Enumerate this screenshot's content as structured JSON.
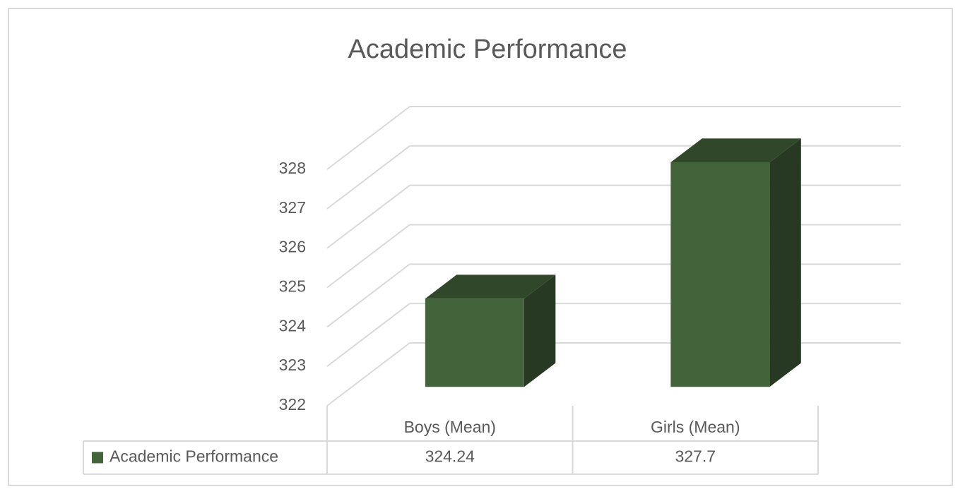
{
  "chart_data": {
    "type": "bar3d",
    "title": "Academic Performance",
    "categories": [
      "Boys (Mean)",
      "Girls (Mean)"
    ],
    "series": [
      {
        "name": "Academic Performance",
        "color": "#43633a",
        "values": [
          324.24,
          327.7
        ]
      }
    ],
    "ylim": [
      322,
      328
    ],
    "yticks": [
      322,
      323,
      324,
      325,
      326,
      327,
      328
    ],
    "grid": true,
    "data_table": true
  }
}
